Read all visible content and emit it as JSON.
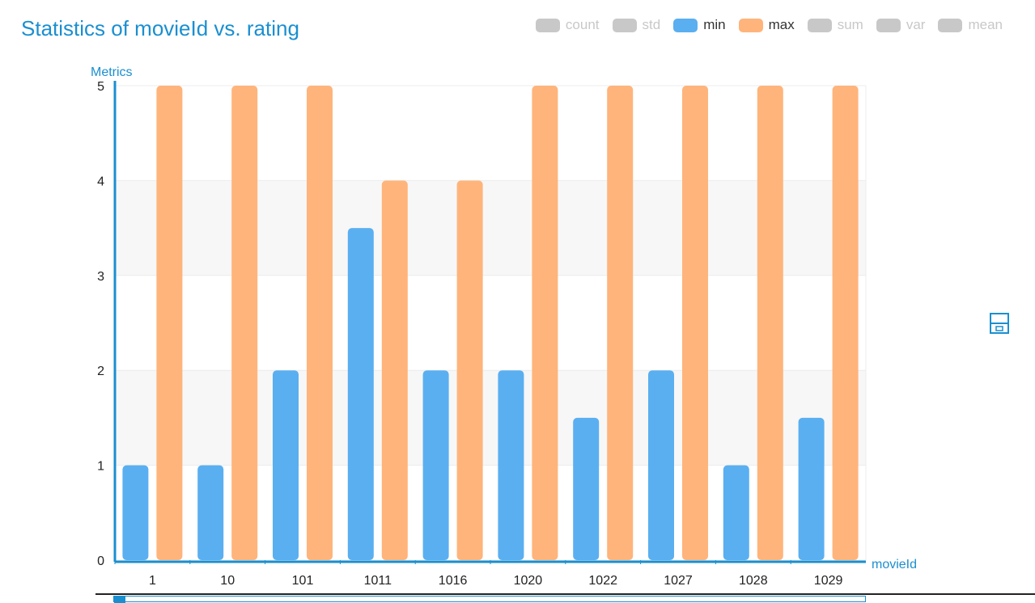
{
  "title": "Statistics of movieId vs. rating",
  "legend": [
    {
      "label": "count",
      "color": "#c8c8c8",
      "active": false
    },
    {
      "label": "std",
      "color": "#c8c8c8",
      "active": false
    },
    {
      "label": "min",
      "color": "#5aaff0",
      "active": true
    },
    {
      "label": "max",
      "color": "#ffb47b",
      "active": true
    },
    {
      "label": "sum",
      "color": "#c8c8c8",
      "active": false
    },
    {
      "label": "var",
      "color": "#c8c8c8",
      "active": false
    },
    {
      "label": "mean",
      "color": "#c8c8c8",
      "active": false
    }
  ],
  "toolbar": {
    "save_icon": "save-icon"
  },
  "chart_data": {
    "type": "bar",
    "title": "Statistics of movieId vs. rating",
    "xlabel": "movieId",
    "ylabel": "Metrics",
    "categories": [
      "1",
      "10",
      "101",
      "1011",
      "1016",
      "1020",
      "1022",
      "1027",
      "1028",
      "1029"
    ],
    "series": [
      {
        "name": "min",
        "color": "#5aaff0",
        "values": [
          1,
          1,
          2,
          3.5,
          2,
          2,
          1.5,
          2,
          1,
          1.5
        ]
      },
      {
        "name": "max",
        "color": "#ffb47b",
        "values": [
          5,
          5,
          5,
          4,
          4,
          5,
          5,
          5,
          5,
          5
        ]
      }
    ],
    "ylim": [
      0,
      5
    ],
    "yticks": [
      "0",
      "1",
      "2",
      "3",
      "4",
      "5"
    ],
    "grid": true,
    "legend_position": "top-right"
  }
}
